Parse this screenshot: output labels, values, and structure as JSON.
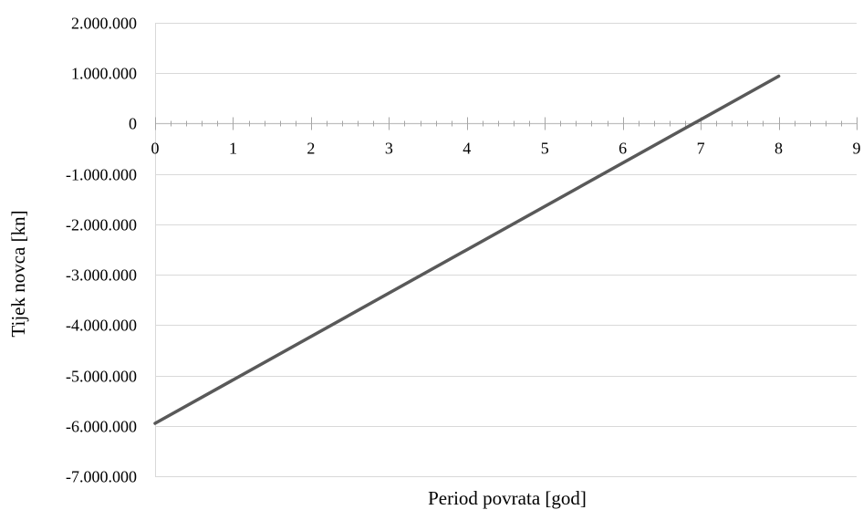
{
  "chart_data": {
    "type": "line",
    "title": "",
    "xlabel": "Period povrata [god]",
    "ylabel": "Tijek novca [kn]",
    "xlim": [
      0,
      9
    ],
    "ylim": [
      -7000000,
      2000000
    ],
    "x_ticks": [
      0,
      1,
      2,
      3,
      4,
      5,
      6,
      7,
      8,
      9
    ],
    "x_tick_labels": [
      "0",
      "1",
      "2",
      "3",
      "4",
      "5",
      "6",
      "7",
      "8",
      "9"
    ],
    "y_ticks": [
      2000000,
      1000000,
      0,
      -1000000,
      -2000000,
      -3000000,
      -4000000,
      -5000000,
      -6000000,
      -7000000
    ],
    "y_tick_labels": [
      "2.000.000",
      "1.000.000",
      "0",
      "-1.000.000",
      "-2.000.000",
      "-3.000.000",
      "-4.000.000",
      "-5.000.000",
      "-6.000.000",
      "-7.000.000"
    ],
    "grid": "horizontal",
    "legend": "none",
    "series": [
      {
        "color": "#595959",
        "x": [
          0,
          8
        ],
        "y": [
          -5950000,
          940000
        ]
      }
    ]
  }
}
